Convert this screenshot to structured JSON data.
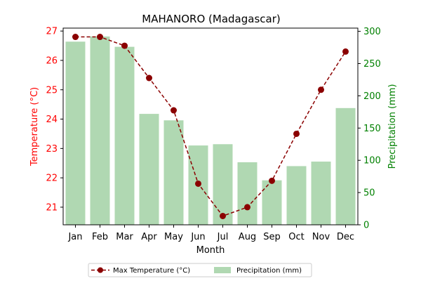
{
  "chart_data": {
    "type": "bar+line",
    "title": "MAHANORO (Madagascar)",
    "xlabel": "Month",
    "y_left_label": "Temperature (°C)",
    "y_right_label": "Precipitation (mm)",
    "categories": [
      "Jan",
      "Feb",
      "Mar",
      "Apr",
      "May",
      "Jun",
      "Jul",
      "Aug",
      "Sep",
      "Oct",
      "Nov",
      "Dec"
    ],
    "y_left_ticks": [
      "21",
      "22",
      "23",
      "24",
      "25",
      "26",
      "27"
    ],
    "y_right_ticks": [
      "0",
      "50",
      "100",
      "150",
      "200",
      "250",
      "300"
    ],
    "y_left_lim": [
      20.4,
      27.1
    ],
    "y_right_lim": [
      0,
      305
    ],
    "series": [
      {
        "name": "Max Temperature (°C)",
        "type": "line",
        "axis": "left",
        "color": "#8b0000",
        "values": [
          26.8,
          26.8,
          26.5,
          25.4,
          24.3,
          21.8,
          20.7,
          21.0,
          21.9,
          23.5,
          25.0,
          26.3
        ]
      },
      {
        "name": "Precipitation (mm)",
        "type": "bar",
        "axis": "right",
        "color": "#b0d8b2",
        "values": [
          284,
          292,
          276,
          172,
          162,
          123,
          125,
          97,
          69,
          91,
          98,
          181
        ]
      }
    ],
    "left_axis_color": "#ff0000",
    "right_axis_color": "#008000",
    "grid": false,
    "legend": "bottom-center"
  }
}
